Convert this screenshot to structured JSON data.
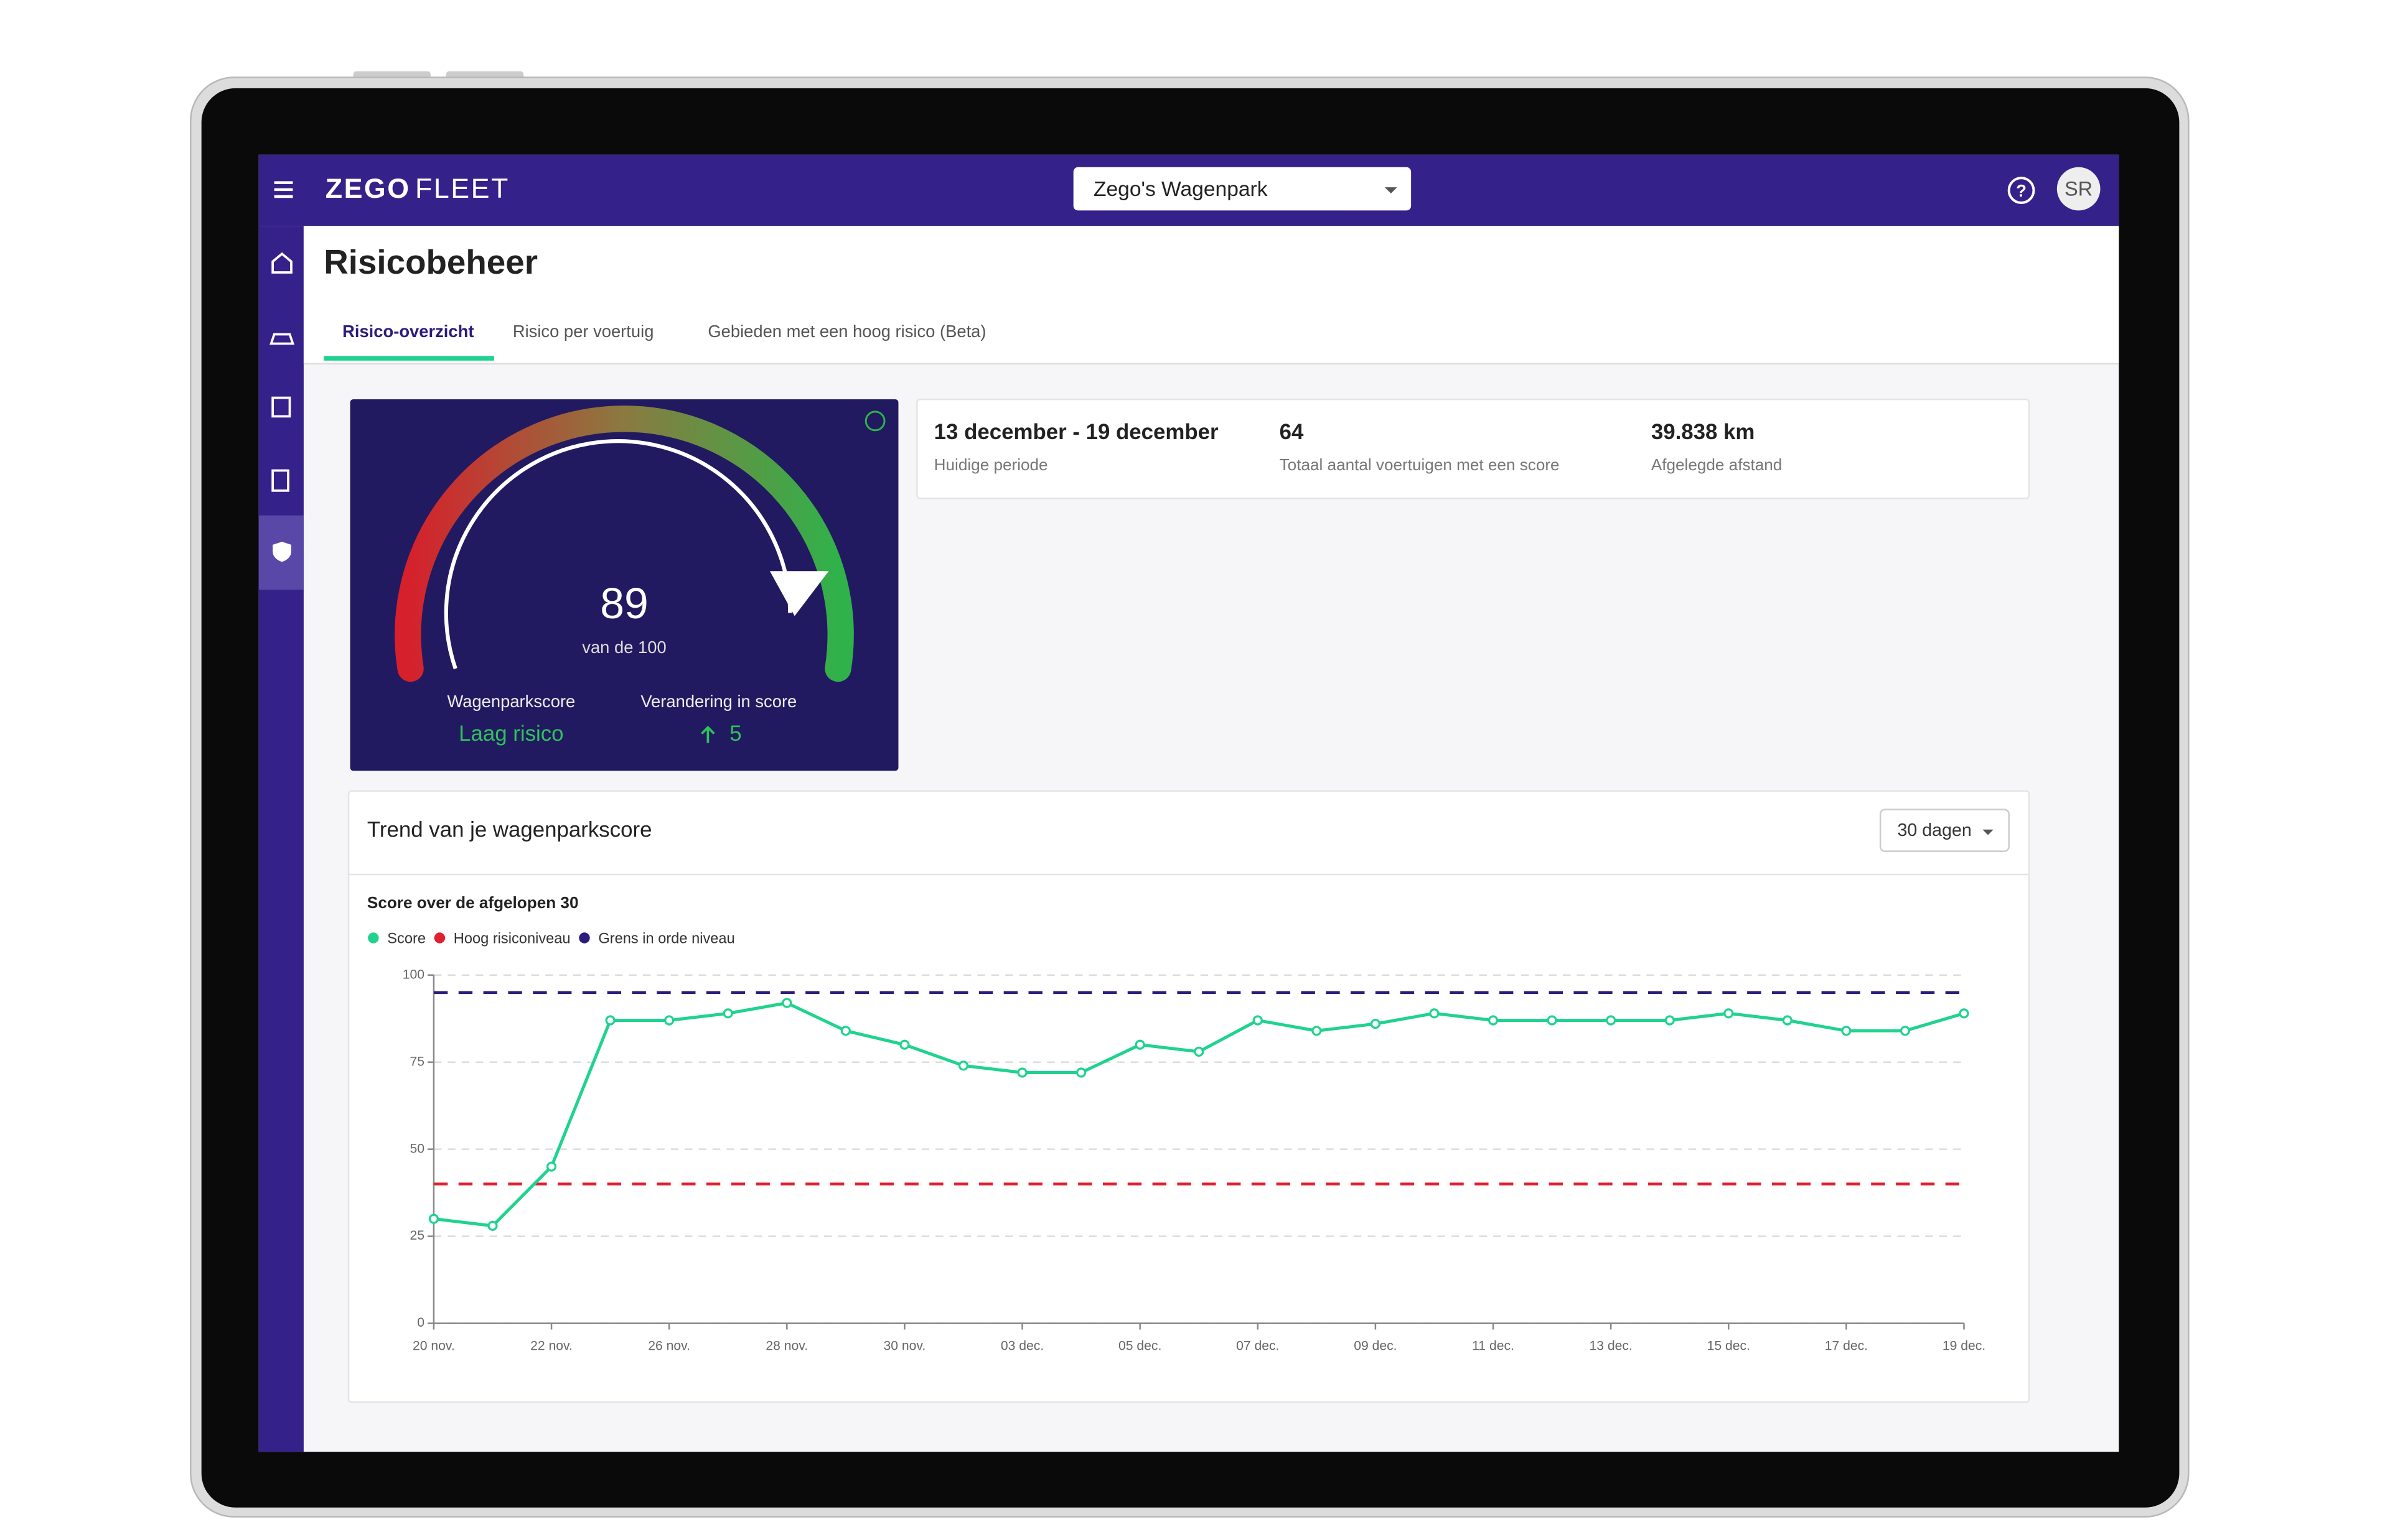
{
  "header": {
    "logo_bold": "ZEGO",
    "logo_light": "FLEET",
    "fleet_selector": "Zego's Wagenpark",
    "avatar": "SR"
  },
  "page": {
    "title": "Risicobeheer",
    "tabs": [
      "Risico-overzicht",
      "Risico per voertuig",
      "Gebieden met een hoog risico (Beta)"
    ]
  },
  "gauge": {
    "score": 89,
    "score_max_label": "van de 100",
    "score_label": "Wagenparkscore",
    "risk_level": "Laag risico",
    "change_label": "Verandering in score",
    "change": 5
  },
  "stats": [
    {
      "value": "13 december - 19 december",
      "label": "Huidige periode"
    },
    {
      "value": "64",
      "label": "Totaal aantal voertuigen met een score"
    },
    {
      "value": "39.838 km",
      "label": "Afgelegde afstand"
    }
  ],
  "trend_card": {
    "title": "Trend van je wagenparkscore",
    "range": "30 dagen"
  },
  "chart_data": {
    "type": "line",
    "title": "Score over de afgelopen 30",
    "categories": [
      "20 nov.",
      null,
      "22 nov.",
      null,
      "26 nov.",
      null,
      "28 nov.",
      null,
      "30 nov.",
      null,
      "03 dec.",
      null,
      "05 dec.",
      null,
      "07 dec.",
      null,
      "09 dec.",
      null,
      "11 dec.",
      null,
      "13 dec.",
      null,
      "15 dec.",
      null,
      "17 dec.",
      null,
      "19 dec."
    ],
    "series": [
      {
        "name": "Score",
        "color": "#1fd38e",
        "markers": true,
        "dashed": false,
        "values": [
          30,
          28,
          45,
          87,
          87,
          89,
          92,
          84,
          80,
          74,
          72,
          72,
          80,
          78,
          87,
          84,
          86,
          89,
          87,
          87,
          87,
          87,
          89,
          87,
          84,
          84,
          89
        ]
      },
      {
        "name": "Hoog risiconiveau",
        "color": "#e0202e",
        "markers": false,
        "dashed": true,
        "values": [
          40,
          40,
          40,
          40,
          40,
          40,
          40,
          40,
          40,
          40,
          40,
          40,
          40,
          40,
          40,
          40,
          40,
          40,
          40,
          40,
          40,
          40,
          40,
          40,
          40,
          40,
          40
        ]
      },
      {
        "name": "Grens in orde niveau",
        "color": "#2a1d7c",
        "markers": false,
        "dashed": true,
        "values": [
          95,
          95,
          95,
          95,
          95,
          95,
          95,
          95,
          95,
          95,
          95,
          95,
          95,
          95,
          95,
          95,
          95,
          95,
          95,
          95,
          95,
          95,
          95,
          95,
          95,
          95,
          95
        ]
      }
    ],
    "ylim": [
      0,
      100
    ],
    "yticks": [
      0,
      25,
      50,
      75,
      100
    ],
    "grid": true
  }
}
